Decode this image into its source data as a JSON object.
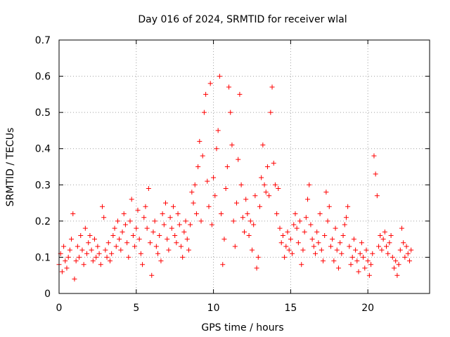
{
  "chart_data": {
    "type": "scatter",
    "title": "Day 016 of 2024, SRMTID for receiver wlal",
    "xlabel": "GPS time / hours",
    "ylabel": "SRMTID / TECUs",
    "xlim": [
      0,
      24
    ],
    "ylim": [
      0,
      0.7
    ],
    "xticks": [
      0,
      5,
      10,
      15,
      20
    ],
    "xtick_labels": [
      "0",
      "5",
      "10",
      "15",
      "20"
    ],
    "yticks": [
      0,
      0.1,
      0.2,
      0.3,
      0.4,
      0.5,
      0.6,
      0.7
    ],
    "ytick_labels": [
      "0",
      "0.1",
      "0.2",
      "0.3",
      "0.4",
      "0.5",
      "0.6",
      "0.7"
    ],
    "grid": true,
    "marker": "+",
    "color": "#ff0000",
    "series": [
      {
        "name": "SRMTID",
        "points": [
          [
            0.0,
            0.08
          ],
          [
            0.1,
            0.11
          ],
          [
            0.2,
            0.06
          ],
          [
            0.3,
            0.13
          ],
          [
            0.4,
            0.09
          ],
          [
            0.5,
            0.07
          ],
          [
            0.6,
            0.1
          ],
          [
            0.7,
            0.12
          ],
          [
            0.8,
            0.15
          ],
          [
            0.9,
            0.22
          ],
          [
            1.0,
            0.04
          ],
          [
            1.1,
            0.09
          ],
          [
            1.2,
            0.13
          ],
          [
            1.3,
            0.1
          ],
          [
            1.4,
            0.16
          ],
          [
            1.5,
            0.12
          ],
          [
            1.6,
            0.08
          ],
          [
            1.7,
            0.18
          ],
          [
            1.8,
            0.11
          ],
          [
            1.9,
            0.14
          ],
          [
            2.0,
            0.16
          ],
          [
            2.1,
            0.12
          ],
          [
            2.2,
            0.09
          ],
          [
            2.3,
            0.15
          ],
          [
            2.4,
            0.1
          ],
          [
            2.5,
            0.13
          ],
          [
            2.6,
            0.11
          ],
          [
            2.7,
            0.08
          ],
          [
            2.8,
            0.24
          ],
          [
            2.9,
            0.21
          ],
          [
            3.0,
            0.12
          ],
          [
            3.1,
            0.1
          ],
          [
            3.2,
            0.14
          ],
          [
            3.3,
            0.09
          ],
          [
            3.4,
            0.11
          ],
          [
            3.5,
            0.16
          ],
          [
            3.6,
            0.18
          ],
          [
            3.7,
            0.13
          ],
          [
            3.8,
            0.2
          ],
          [
            3.9,
            0.15
          ],
          [
            4.0,
            0.12
          ],
          [
            4.1,
            0.17
          ],
          [
            4.2,
            0.22
          ],
          [
            4.3,
            0.19
          ],
          [
            4.4,
            0.14
          ],
          [
            4.5,
            0.1
          ],
          [
            4.6,
            0.2
          ],
          [
            4.7,
            0.26
          ],
          [
            4.8,
            0.16
          ],
          [
            4.9,
            0.13
          ],
          [
            5.0,
            0.18
          ],
          [
            5.1,
            0.23
          ],
          [
            5.2,
            0.15
          ],
          [
            5.3,
            0.11
          ],
          [
            5.4,
            0.08
          ],
          [
            5.5,
            0.21
          ],
          [
            5.6,
            0.24
          ],
          [
            5.7,
            0.18
          ],
          [
            5.8,
            0.29
          ],
          [
            5.9,
            0.14
          ],
          [
            6.0,
            0.05
          ],
          [
            6.1,
            0.17
          ],
          [
            6.2,
            0.2
          ],
          [
            6.3,
            0.13
          ],
          [
            6.4,
            0.11
          ],
          [
            6.5,
            0.16
          ],
          [
            6.6,
            0.09
          ],
          [
            6.7,
            0.22
          ],
          [
            6.8,
            0.19
          ],
          [
            6.9,
            0.25
          ],
          [
            7.0,
            0.15
          ],
          [
            7.1,
            0.12
          ],
          [
            7.2,
            0.21
          ],
          [
            7.3,
            0.18
          ],
          [
            7.4,
            0.24
          ],
          [
            7.5,
            0.16
          ],
          [
            7.6,
            0.14
          ],
          [
            7.7,
            0.22
          ],
          [
            7.8,
            0.19
          ],
          [
            7.9,
            0.13
          ],
          [
            8.0,
            0.1
          ],
          [
            8.1,
            0.17
          ],
          [
            8.2,
            0.2
          ],
          [
            8.3,
            0.15
          ],
          [
            8.4,
            0.12
          ],
          [
            8.5,
            0.19
          ],
          [
            8.6,
            0.28
          ],
          [
            8.7,
            0.25
          ],
          [
            8.8,
            0.3
          ],
          [
            8.9,
            0.22
          ],
          [
            9.0,
            0.35
          ],
          [
            9.1,
            0.42
          ],
          [
            9.2,
            0.2
          ],
          [
            9.3,
            0.38
          ],
          [
            9.4,
            0.5
          ],
          [
            9.5,
            0.55
          ],
          [
            9.6,
            0.31
          ],
          [
            9.7,
            0.24
          ],
          [
            9.8,
            0.58
          ],
          [
            9.9,
            0.19
          ],
          [
            10.0,
            0.32
          ],
          [
            10.1,
            0.27
          ],
          [
            10.2,
            0.4
          ],
          [
            10.3,
            0.45
          ],
          [
            10.4,
            0.6
          ],
          [
            10.5,
            0.22
          ],
          [
            10.6,
            0.08
          ],
          [
            10.7,
            0.15
          ],
          [
            10.8,
            0.29
          ],
          [
            10.9,
            0.35
          ],
          [
            11.0,
            0.57
          ],
          [
            11.1,
            0.5
          ],
          [
            11.2,
            0.41
          ],
          [
            11.3,
            0.2
          ],
          [
            11.4,
            0.13
          ],
          [
            11.5,
            0.25
          ],
          [
            11.6,
            0.37
          ],
          [
            11.7,
            0.55
          ],
          [
            11.8,
            0.3
          ],
          [
            11.9,
            0.21
          ],
          [
            12.0,
            0.17
          ],
          [
            12.1,
            0.26
          ],
          [
            12.2,
            0.22
          ],
          [
            12.3,
            0.16
          ],
          [
            12.4,
            0.2
          ],
          [
            12.5,
            0.12
          ],
          [
            12.6,
            0.19
          ],
          [
            12.7,
            0.27
          ],
          [
            12.8,
            0.07
          ],
          [
            12.9,
            0.1
          ],
          [
            13.0,
            0.24
          ],
          [
            13.1,
            0.32
          ],
          [
            13.2,
            0.41
          ],
          [
            13.3,
            0.3
          ],
          [
            13.4,
            0.28
          ],
          [
            13.5,
            0.35
          ],
          [
            13.6,
            0.27
          ],
          [
            13.7,
            0.5
          ],
          [
            13.8,
            0.57
          ],
          [
            13.9,
            0.36
          ],
          [
            14.0,
            0.3
          ],
          [
            14.1,
            0.22
          ],
          [
            14.2,
            0.29
          ],
          [
            14.3,
            0.18
          ],
          [
            14.4,
            0.14
          ],
          [
            14.5,
            0.16
          ],
          [
            14.6,
            0.1
          ],
          [
            14.7,
            0.13
          ],
          [
            14.8,
            0.17
          ],
          [
            14.9,
            0.12
          ],
          [
            15.0,
            0.15
          ],
          [
            15.1,
            0.11
          ],
          [
            15.2,
            0.19
          ],
          [
            15.3,
            0.22
          ],
          [
            15.4,
            0.18
          ],
          [
            15.5,
            0.14
          ],
          [
            15.6,
            0.2
          ],
          [
            15.7,
            0.08
          ],
          [
            15.8,
            0.12
          ],
          [
            15.9,
            0.17
          ],
          [
            16.0,
            0.21
          ],
          [
            16.1,
            0.26
          ],
          [
            16.2,
            0.3
          ],
          [
            16.3,
            0.19
          ],
          [
            16.4,
            0.15
          ],
          [
            16.5,
            0.13
          ],
          [
            16.6,
            0.11
          ],
          [
            16.7,
            0.17
          ],
          [
            16.8,
            0.14
          ],
          [
            16.9,
            0.22
          ],
          [
            17.0,
            0.12
          ],
          [
            17.1,
            0.09
          ],
          [
            17.2,
            0.16
          ],
          [
            17.3,
            0.28
          ],
          [
            17.4,
            0.2
          ],
          [
            17.5,
            0.24
          ],
          [
            17.6,
            0.13
          ],
          [
            17.7,
            0.15
          ],
          [
            17.8,
            0.09
          ],
          [
            17.9,
            0.18
          ],
          [
            18.0,
            0.12
          ],
          [
            18.1,
            0.07
          ],
          [
            18.2,
            0.14
          ],
          [
            18.3,
            0.11
          ],
          [
            18.4,
            0.16
          ],
          [
            18.5,
            0.19
          ],
          [
            18.6,
            0.21
          ],
          [
            18.7,
            0.24
          ],
          [
            18.8,
            0.13
          ],
          [
            18.9,
            0.08
          ],
          [
            19.0,
            0.1
          ],
          [
            19.1,
            0.15
          ],
          [
            19.2,
            0.12
          ],
          [
            19.3,
            0.09
          ],
          [
            19.4,
            0.06
          ],
          [
            19.5,
            0.11
          ],
          [
            19.6,
            0.14
          ],
          [
            19.7,
            0.1
          ],
          [
            19.8,
            0.07
          ],
          [
            19.9,
            0.12
          ],
          [
            20.0,
            0.09
          ],
          [
            20.1,
            0.05
          ],
          [
            20.2,
            0.08
          ],
          [
            20.3,
            0.11
          ],
          [
            20.4,
            0.38
          ],
          [
            20.5,
            0.33
          ],
          [
            20.6,
            0.27
          ],
          [
            20.7,
            0.13
          ],
          [
            20.8,
            0.16
          ],
          [
            20.9,
            0.12
          ],
          [
            21.0,
            0.15
          ],
          [
            21.1,
            0.17
          ],
          [
            21.2,
            0.13
          ],
          [
            21.3,
            0.11
          ],
          [
            21.4,
            0.14
          ],
          [
            21.5,
            0.16
          ],
          [
            21.6,
            0.1
          ],
          [
            21.7,
            0.07
          ],
          [
            21.8,
            0.09
          ],
          [
            21.9,
            0.05
          ],
          [
            22.0,
            0.08
          ],
          [
            22.1,
            0.12
          ],
          [
            22.2,
            0.18
          ],
          [
            22.3,
            0.14
          ],
          [
            22.4,
            0.1
          ],
          [
            22.5,
            0.13
          ],
          [
            22.6,
            0.11
          ],
          [
            22.7,
            0.09
          ],
          [
            22.8,
            0.12
          ]
        ]
      }
    ]
  }
}
